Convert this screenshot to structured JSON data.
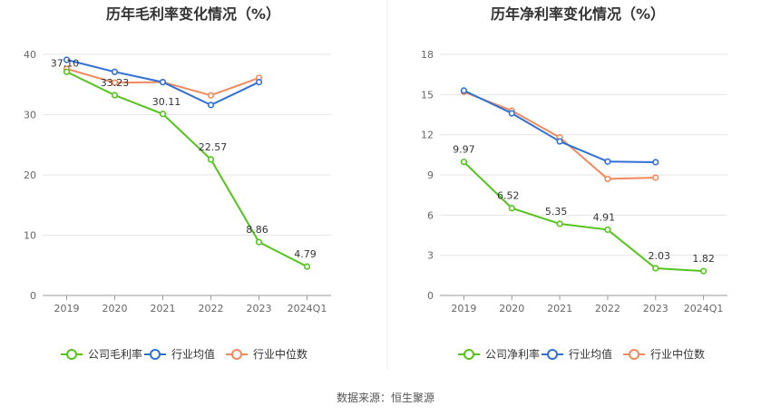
{
  "source": "数据来源：恒生聚源",
  "legend": [
    {
      "name": "公司毛利率",
      "color": "#52c41a"
    },
    {
      "name": "行业均值",
      "color": "#2f6fd6"
    },
    {
      "name": "行业中位数",
      "color": "#f08a5d"
    }
  ],
  "legend_right": [
    {
      "name": "公司净利率",
      "color": "#52c41a"
    },
    {
      "name": "行业均值",
      "color": "#2f6fd6"
    },
    {
      "name": "行业中位数",
      "color": "#f08a5d"
    }
  ],
  "chart_data": [
    {
      "type": "line",
      "title": "历年毛利率变化情况（%）",
      "categories": [
        "2019",
        "2020",
        "2021",
        "2022",
        "2023",
        "2024Q1"
      ],
      "ylim": [
        0,
        40
      ],
      "yticks": [
        0,
        10,
        20,
        30,
        40
      ],
      "grid": true,
      "legend_position": "bottom",
      "series": [
        {
          "name": "公司毛利率",
          "color": "#52c41a",
          "values": [
            37.1,
            33.23,
            30.11,
            22.57,
            8.86,
            4.79
          ],
          "labels": [
            "37.10",
            "33.23",
            "30.11",
            "22.57",
            "8.86",
            "4.79"
          ]
        },
        {
          "name": "行业均值",
          "color": "#2f6fd6",
          "values": [
            39.1,
            37.1,
            35.4,
            31.6,
            35.4,
            null
          ]
        },
        {
          "name": "行业中位数",
          "color": "#f08a5d",
          "values": [
            37.6,
            35.3,
            35.4,
            33.2,
            36.1,
            null
          ]
        }
      ]
    },
    {
      "type": "line",
      "title": "历年净利率变化情况（%）",
      "categories": [
        "2019",
        "2020",
        "2021",
        "2022",
        "2023",
        "2024Q1"
      ],
      "ylim": [
        0,
        18
      ],
      "yticks": [
        0,
        3,
        6,
        9,
        12,
        15,
        18
      ],
      "grid": true,
      "legend_position": "bottom",
      "series": [
        {
          "name": "公司净利率",
          "color": "#52c41a",
          "values": [
            9.97,
            6.52,
            5.35,
            4.91,
            2.03,
            1.82
          ],
          "labels": [
            "9.97",
            "6.52",
            "5.35",
            "4.91",
            "2.03",
            "1.82"
          ]
        },
        {
          "name": "行业均值",
          "color": "#2f6fd6",
          "values": [
            15.3,
            13.6,
            11.5,
            10.0,
            9.95,
            null
          ]
        },
        {
          "name": "行业中位数",
          "color": "#f08a5d",
          "values": [
            15.2,
            13.8,
            11.8,
            8.7,
            8.8,
            null
          ]
        }
      ]
    }
  ]
}
